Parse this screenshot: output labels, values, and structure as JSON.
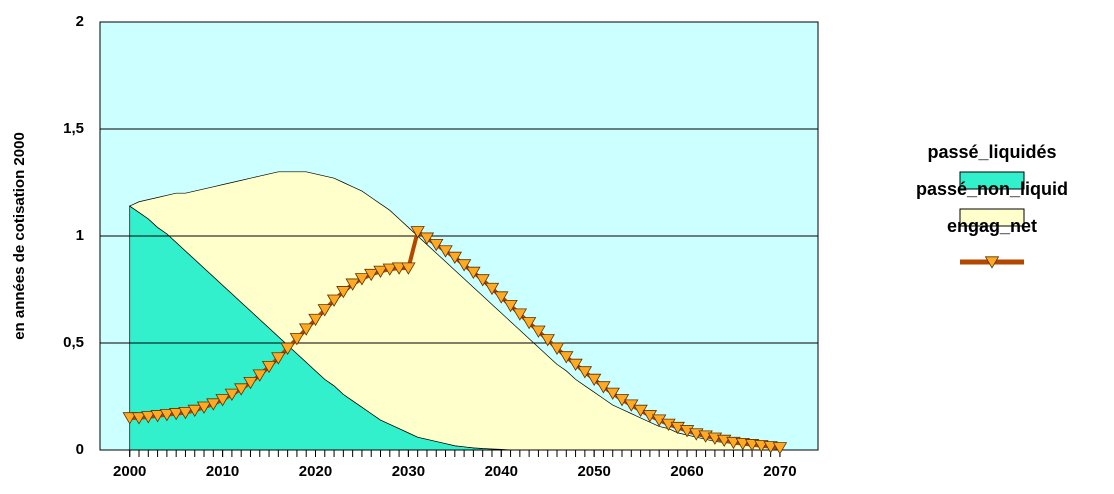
{
  "chart_data": {
    "type": "stacked_area_line",
    "y_axis_label": "en années de cotisation 2000",
    "x": [
      2000,
      2001,
      2002,
      2003,
      2004,
      2005,
      2006,
      2007,
      2008,
      2009,
      2010,
      2011,
      2012,
      2013,
      2014,
      2015,
      2016,
      2017,
      2018,
      2019,
      2020,
      2021,
      2022,
      2023,
      2024,
      2025,
      2026,
      2027,
      2028,
      2029,
      2030,
      2031,
      2032,
      2033,
      2034,
      2035,
      2036,
      2037,
      2038,
      2039,
      2040,
      2041,
      2042,
      2043,
      2044,
      2045,
      2046,
      2047,
      2048,
      2049,
      2050,
      2051,
      2052,
      2053,
      2054,
      2055,
      2056,
      2057,
      2058,
      2059,
      2060,
      2061,
      2062,
      2063,
      2064,
      2065,
      2066,
      2067,
      2068,
      2069,
      2070
    ],
    "xlim": [
      1996.8,
      2074.1
    ],
    "xticks": [
      2000,
      2010,
      2020,
      2030,
      2040,
      2050,
      2060,
      2070
    ],
    "ylim": [
      0,
      2
    ],
    "yticks": [
      0,
      {
        "value": 0.5,
        "label": "0,5"
      },
      1,
      {
        "value": 1.5,
        "label": "1,5"
      },
      2
    ],
    "grid": true,
    "plot_background": "#ccffff",
    "series": [
      {
        "name": "passé_liquidés",
        "kind": "area",
        "color": "#33f0cc",
        "values": [
          1.14,
          1.11,
          1.08,
          1.04,
          1.01,
          0.97,
          0.93,
          0.89,
          0.85,
          0.81,
          0.77,
          0.73,
          0.69,
          0.65,
          0.61,
          0.57,
          0.53,
          0.49,
          0.45,
          0.41,
          0.37,
          0.33,
          0.3,
          0.26,
          0.23,
          0.2,
          0.17,
          0.14,
          0.12,
          0.1,
          0.08,
          0.06,
          0.05,
          0.04,
          0.03,
          0.02,
          0.015,
          0.01,
          0.007,
          0.005,
          0.003,
          0,
          0,
          0,
          0,
          0,
          0,
          0,
          0,
          0,
          0,
          0,
          0,
          0,
          0,
          0,
          0,
          0,
          0,
          0,
          0,
          0,
          0,
          0,
          0,
          0,
          0,
          0,
          0,
          0,
          0
        ]
      },
      {
        "name": "passé_non_liquid",
        "kind": "area",
        "color": "#ffffcc",
        "values": [
          0,
          0.05,
          0.09,
          0.14,
          0.18,
          0.23,
          0.27,
          0.32,
          0.37,
          0.42,
          0.47,
          0.52,
          0.57,
          0.62,
          0.67,
          0.72,
          0.77,
          0.81,
          0.85,
          0.89,
          0.92,
          0.95,
          0.97,
          0.99,
          1.0,
          1.01,
          1.01,
          1.01,
          1.0,
          0.98,
          0.96,
          0.94,
          0.91,
          0.88,
          0.85,
          0.82,
          0.785,
          0.75,
          0.713,
          0.675,
          0.637,
          0.6,
          0.56,
          0.52,
          0.48,
          0.44,
          0.4,
          0.37,
          0.33,
          0.3,
          0.27,
          0.24,
          0.21,
          0.19,
          0.17,
          0.15,
          0.13,
          0.11,
          0.1,
          0.08,
          0.07,
          0.06,
          0.05,
          0.04,
          0.035,
          0.03,
          0.025,
          0.02,
          0.015,
          0.01,
          0.01
        ]
      },
      {
        "name": "engag_net",
        "kind": "line",
        "color": "#b34700",
        "marker_color": "#ffaa22",
        "values": [
          0.15,
          0.15,
          0.155,
          0.16,
          0.165,
          0.17,
          0.175,
          0.185,
          0.2,
          0.215,
          0.235,
          0.26,
          0.285,
          0.315,
          0.35,
          0.39,
          0.43,
          0.475,
          0.52,
          0.565,
          0.61,
          0.655,
          0.7,
          0.74,
          0.775,
          0.8,
          0.82,
          0.835,
          0.845,
          0.85,
          0.85,
          1.02,
          0.99,
          0.96,
          0.93,
          0.9,
          0.865,
          0.83,
          0.795,
          0.755,
          0.715,
          0.675,
          0.635,
          0.595,
          0.555,
          0.515,
          0.475,
          0.435,
          0.4,
          0.365,
          0.33,
          0.295,
          0.265,
          0.235,
          0.21,
          0.185,
          0.16,
          0.14,
          0.12,
          0.105,
          0.09,
          0.075,
          0.065,
          0.055,
          0.045,
          0.035,
          0.03,
          0.025,
          0.02,
          0.015,
          0.01
        ]
      }
    ]
  }
}
